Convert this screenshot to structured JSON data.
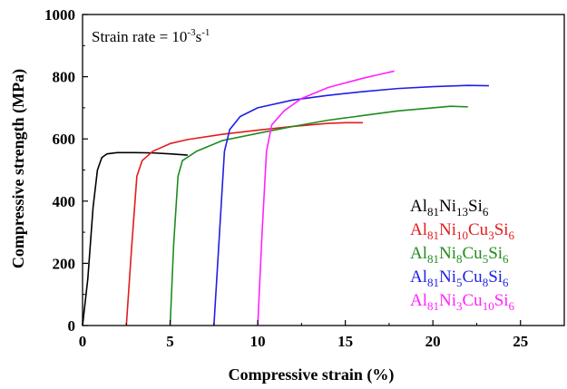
{
  "chart_data": {
    "type": "line",
    "title": "",
    "xlabel": "Compressive strain (%)",
    "ylabel": "Compressive strength (MPa)",
    "xlim": [
      0,
      27.5
    ],
    "ylim": [
      0,
      1000
    ],
    "x_ticks": [
      0,
      5,
      10,
      15,
      20,
      25
    ],
    "y_ticks": [
      0,
      200,
      400,
      600,
      800,
      1000
    ],
    "x_tick_labels": [
      "0",
      "5",
      "10",
      "15",
      "20",
      "25"
    ],
    "y_tick_labels": [
      "0",
      "200",
      "400",
      "600",
      "800",
      "1000"
    ],
    "grid": false,
    "legend_position": "right",
    "annotation": {
      "text_main": "Strain rate = 10",
      "exp1": "-3",
      "mid": "s",
      "exp2": "-1"
    },
    "series": [
      {
        "name": "Al81Ni13Si6",
        "color": "#000000",
        "legend_parts": [
          {
            "t": "Al"
          },
          {
            "t": "81",
            "sub": true
          },
          {
            "t": "Ni"
          },
          {
            "t": "13",
            "sub": true
          },
          {
            "t": "Si"
          },
          {
            "t": "6",
            "sub": true
          }
        ],
        "points": [
          [
            0,
            0
          ],
          [
            0.3,
            150
          ],
          [
            0.6,
            380
          ],
          [
            0.85,
            500
          ],
          [
            1.1,
            540
          ],
          [
            1.4,
            552
          ],
          [
            2.0,
            556
          ],
          [
            3.0,
            556
          ],
          [
            4.0,
            555
          ],
          [
            5.0,
            552
          ],
          [
            6.0,
            548
          ]
        ]
      },
      {
        "name": "Al81Ni10Cu3Si6",
        "color": "#e41a1c",
        "legend_parts": [
          {
            "t": "Al"
          },
          {
            "t": "81",
            "sub": true
          },
          {
            "t": "Ni"
          },
          {
            "t": "10",
            "sub": true
          },
          {
            "t": "Cu"
          },
          {
            "t": "3",
            "sub": true
          },
          {
            "t": "Si"
          },
          {
            "t": "6",
            "sub": true
          }
        ],
        "points": [
          [
            2.5,
            0
          ],
          [
            2.8,
            250
          ],
          [
            3.1,
            480
          ],
          [
            3.4,
            530
          ],
          [
            4.0,
            560
          ],
          [
            5.0,
            585
          ],
          [
            6.0,
            598
          ],
          [
            8.0,
            615
          ],
          [
            10.0,
            628
          ],
          [
            12.0,
            640
          ],
          [
            14.0,
            650
          ],
          [
            15.0,
            652
          ],
          [
            16.0,
            652
          ]
        ]
      },
      {
        "name": "Al81Ni8Cu5Si6",
        "color": "#1e8c1e",
        "legend_parts": [
          {
            "t": "Al"
          },
          {
            "t": "81",
            "sub": true
          },
          {
            "t": "Ni"
          },
          {
            "t": "8",
            "sub": true
          },
          {
            "t": "Cu"
          },
          {
            "t": "5",
            "sub": true
          },
          {
            "t": "Si"
          },
          {
            "t": "6",
            "sub": true
          }
        ],
        "points": [
          [
            5.0,
            0
          ],
          [
            5.2,
            260
          ],
          [
            5.45,
            480
          ],
          [
            5.7,
            530
          ],
          [
            6.5,
            560
          ],
          [
            8.0,
            595
          ],
          [
            10.0,
            618
          ],
          [
            12.0,
            640
          ],
          [
            14.0,
            660
          ],
          [
            16.0,
            675
          ],
          [
            18.0,
            690
          ],
          [
            20.0,
            700
          ],
          [
            21.0,
            705
          ],
          [
            22.0,
            703
          ]
        ]
      },
      {
        "name": "Al81Ni5Cu8Si6",
        "color": "#1f1fe6",
        "legend_parts": [
          {
            "t": "Al"
          },
          {
            "t": "81",
            "sub": true
          },
          {
            "t": "Ni"
          },
          {
            "t": "5",
            "sub": true
          },
          {
            "t": "Cu"
          },
          {
            "t": "8",
            "sub": true
          },
          {
            "t": "Si"
          },
          {
            "t": "6",
            "sub": true
          }
        ],
        "points": [
          [
            7.5,
            0
          ],
          [
            7.8,
            280
          ],
          [
            8.1,
            560
          ],
          [
            8.4,
            630
          ],
          [
            9.0,
            672
          ],
          [
            10.0,
            700
          ],
          [
            12.0,
            725
          ],
          [
            14.0,
            740
          ],
          [
            16.0,
            752
          ],
          [
            18.0,
            762
          ],
          [
            20.0,
            768
          ],
          [
            22.0,
            772
          ],
          [
            23.2,
            771
          ]
        ]
      },
      {
        "name": "Al81Ni3Cu10Si6",
        "color": "#ff22ff",
        "legend_parts": [
          {
            "t": "Al"
          },
          {
            "t": "81",
            "sub": true
          },
          {
            "t": "Ni"
          },
          {
            "t": "3",
            "sub": true
          },
          {
            "t": "Cu"
          },
          {
            "t": "10",
            "sub": true
          },
          {
            "t": "Si"
          },
          {
            "t": "6",
            "sub": true
          }
        ],
        "points": [
          [
            10.0,
            0
          ],
          [
            10.25,
            300
          ],
          [
            10.5,
            560
          ],
          [
            10.8,
            645
          ],
          [
            11.5,
            690
          ],
          [
            12.5,
            730
          ],
          [
            14.0,
            765
          ],
          [
            16.0,
            795
          ],
          [
            17.0,
            808
          ],
          [
            17.8,
            818
          ]
        ]
      }
    ]
  }
}
